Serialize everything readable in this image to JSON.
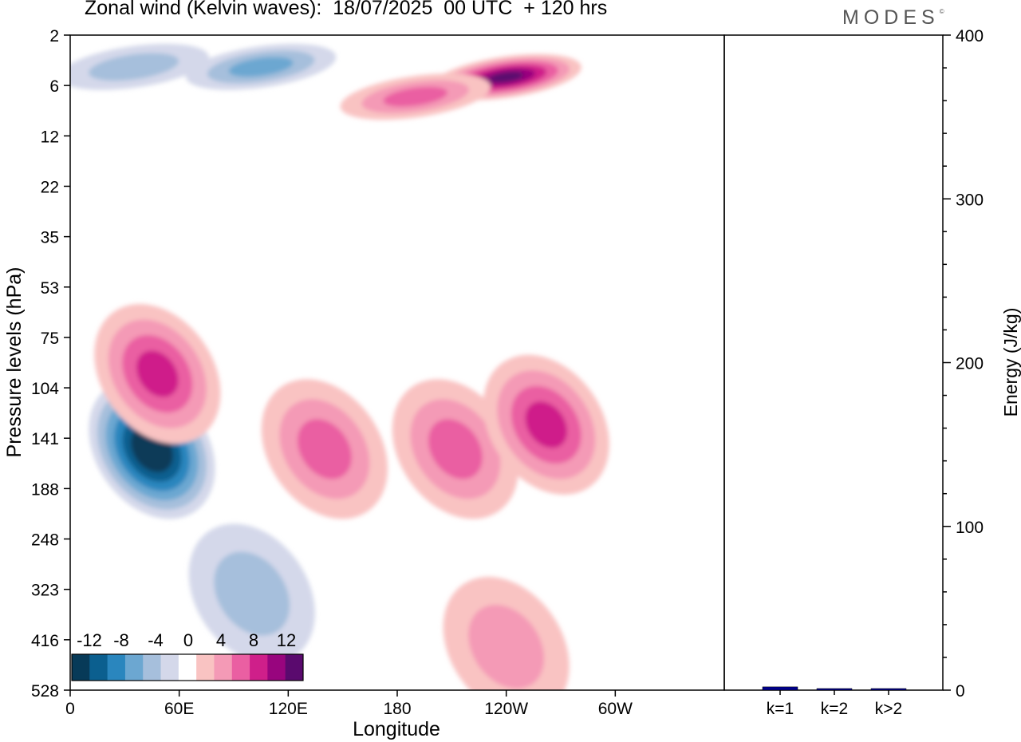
{
  "header": {
    "title": "Zonal wind (Kelvin waves):  18/07/2025  00 UTC  + 120 hrs",
    "brand": "MODES",
    "brand_mark": "©"
  },
  "chart_data": [
    {
      "type": "heatmap",
      "title": "Zonal wind (Kelvin waves):  18/07/2025  00 UTC  + 120 hrs",
      "xlabel": "Longitude",
      "ylabel": "Pressure levels (hPa)",
      "x_ticks": [
        "0",
        "60E",
        "120E",
        "180",
        "120W",
        "60W"
      ],
      "y_ticks": [
        "2",
        "6",
        "12",
        "22",
        "35",
        "53",
        "75",
        "104",
        "141",
        "188",
        "248",
        "323",
        "416",
        "528"
      ],
      "xlim": [
        0,
        360
      ],
      "ylim": [
        2,
        528
      ],
      "colorbar": {
        "labels": [
          "-12",
          "-8",
          "-4",
          "0",
          "4",
          "8",
          "12"
        ],
        "levels": [
          -12,
          -10,
          -8,
          -6,
          -4,
          -2,
          2,
          4,
          6,
          8,
          10,
          12
        ],
        "colors": [
          "#073a58",
          "#0b5f8f",
          "#2a86be",
          "#6ca7d1",
          "#a6bfdc",
          "#d4d8ea",
          "#ffffff",
          "#f9c3c2",
          "#f49ab6",
          "#ea5fa2",
          "#cf1f8a",
          "#98057e",
          "#5a0a6e"
        ]
      },
      "features": [
        {
          "lon": 45,
          "p": 150,
          "value": -14
        },
        {
          "lon": 48,
          "p": 95,
          "value": 8
        },
        {
          "lon": 140,
          "p": 150,
          "value": 6
        },
        {
          "lon": 212,
          "p": 150,
          "value": 7
        },
        {
          "lon": 262,
          "p": 130,
          "value": 9
        },
        {
          "lon": 240,
          "p": 5,
          "value": 12
        },
        {
          "lon": 190,
          "p": 7,
          "value": 6
        },
        {
          "lon": 105,
          "p": 4,
          "value": -7
        },
        {
          "lon": 35,
          "p": 4,
          "value": -5
        },
        {
          "lon": 100,
          "p": 330,
          "value": -4
        },
        {
          "lon": 240,
          "p": 430,
          "value": 5
        }
      ]
    },
    {
      "type": "bar",
      "ylabel": "Energy (J/kg)",
      "categories": [
        "k=1",
        "k=2",
        "k>2"
      ],
      "values": [
        2,
        0.5,
        0.5
      ],
      "ylim": [
        0,
        400
      ],
      "y_ticks": [
        "0",
        "100",
        "200",
        "300",
        "400"
      ],
      "bar_color": "#00008b"
    }
  ]
}
